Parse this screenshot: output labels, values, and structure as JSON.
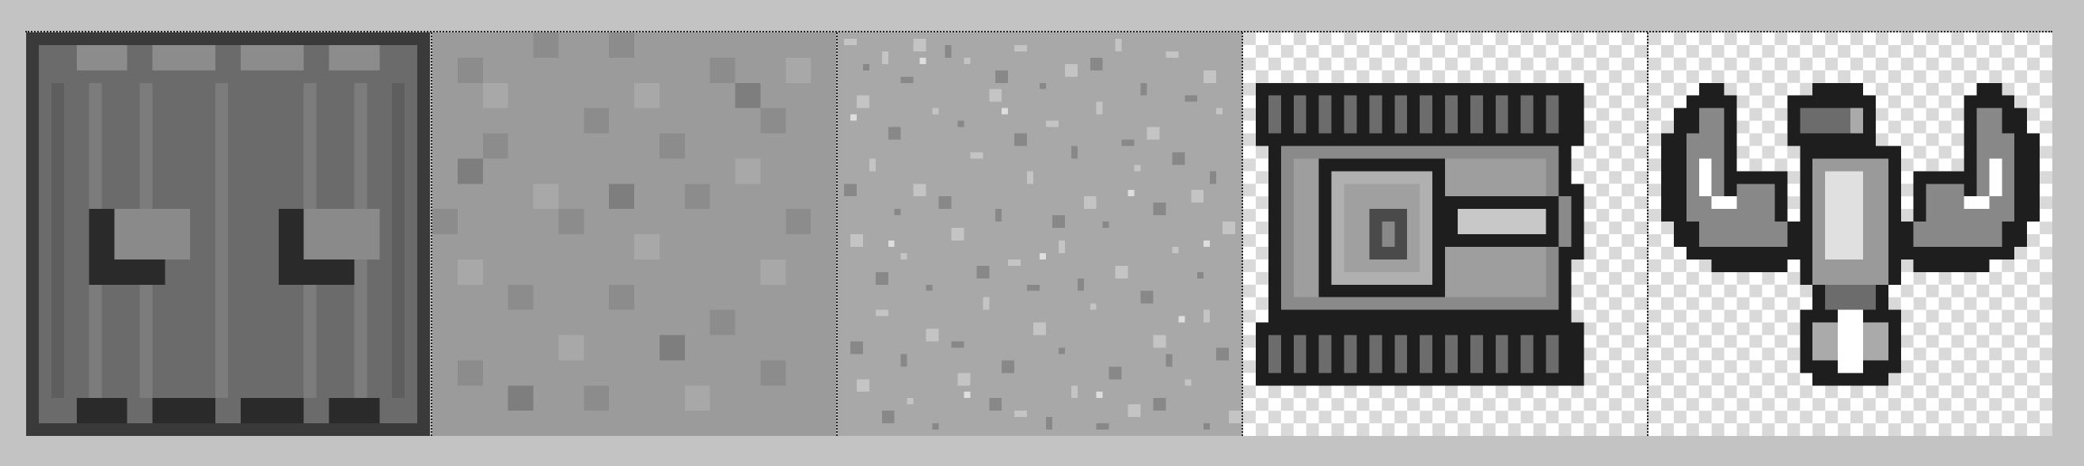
{
  "tileset": {
    "tiles": [
      {
        "name": "wall-panel",
        "icon": "steel-wall-tile"
      },
      {
        "name": "floor-light",
        "icon": "gravel-floor-tile"
      },
      {
        "name": "floor-noise",
        "icon": "noise-ground-tile"
      },
      {
        "name": "tank",
        "icon": "tank-sprite"
      },
      {
        "name": "eagle",
        "icon": "eagle-emblem-sprite"
      }
    ],
    "colors": {
      "background": "#c3c3c3",
      "dark": "#1e1e1e",
      "mid": "#6a6a6a",
      "light": "#9a9a9a",
      "checker_a": "#ffffff",
      "checker_b": "#d9d9d9"
    }
  }
}
